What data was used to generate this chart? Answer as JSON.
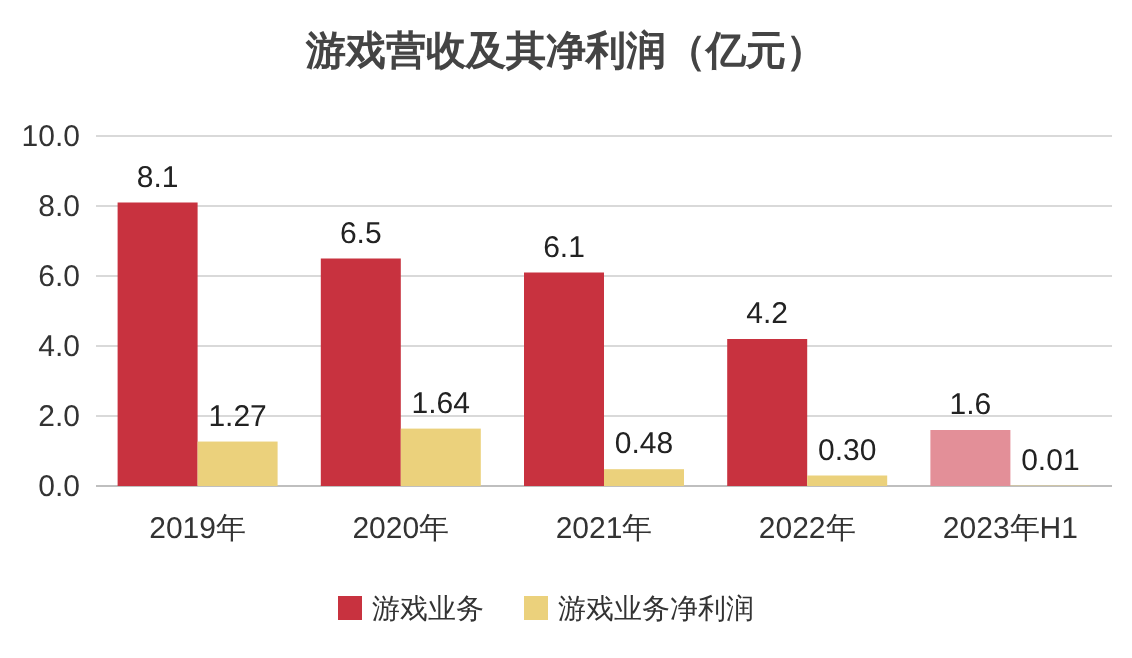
{
  "chart_data": {
    "type": "bar",
    "title": "游戏营收及其净利润（亿元）",
    "categories": [
      "2019年",
      "2020年",
      "2021年",
      "2022年",
      "2023年H1"
    ],
    "series": [
      {
        "name": "游戏业务",
        "color": "#c8323f",
        "colors": [
          "#c8323f",
          "#c8323f",
          "#c8323f",
          "#c8323f",
          "#e38f98"
        ],
        "values": [
          8.1,
          6.5,
          6.1,
          4.2,
          1.6
        ],
        "value_labels": [
          "8.1",
          "6.5",
          "6.1",
          "4.2",
          "1.6"
        ]
      },
      {
        "name": "游戏业务净利润",
        "color": "#ebd17c",
        "values": [
          1.27,
          1.64,
          0.48,
          0.3,
          0.01
        ],
        "value_labels": [
          "1.27",
          "1.64",
          "0.48",
          "0.30",
          "0.01"
        ]
      }
    ],
    "ylim": [
      0,
      10
    ],
    "yticks": [
      {
        "value": 0,
        "label": "0.0"
      },
      {
        "value": 2,
        "label": "2.0"
      },
      {
        "value": 4,
        "label": "4.0"
      },
      {
        "value": 6,
        "label": "6.0"
      },
      {
        "value": 8,
        "label": "8.0"
      },
      {
        "value": 10,
        "label": "10.0"
      }
    ],
    "grid": "y",
    "legend": "bottom"
  }
}
